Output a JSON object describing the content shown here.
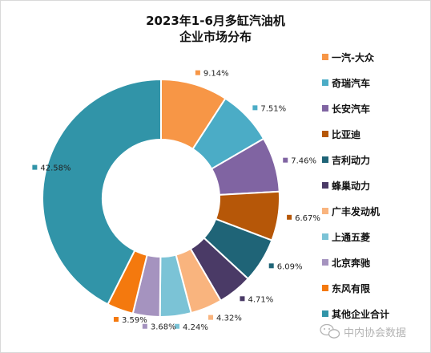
{
  "chart_data": {
    "type": "pie",
    "subtype": "donut",
    "title": [
      "2023年1-6月多缸汽油机",
      "企业市场分布"
    ],
    "legend_position": "right",
    "series": [
      {
        "name": "一汽-大众",
        "value": 9.14,
        "label": "9.14%",
        "color": "#F79646"
      },
      {
        "name": "奇瑞汽车",
        "value": 7.51,
        "label": "7.51%",
        "color": "#4BACC6"
      },
      {
        "name": "长安汽车",
        "value": 7.46,
        "label": "7.46%",
        "color": "#8064A2"
      },
      {
        "name": "比亚迪",
        "value": 6.67,
        "label": "6.67%",
        "color": "#B65708"
      },
      {
        "name": "吉利动力",
        "value": 6.09,
        "label": "6.09%",
        "color": "#1F6477"
      },
      {
        "name": "蜂巢动力",
        "value": 4.71,
        "label": "4.71%",
        "color": "#4A3A66"
      },
      {
        "name": "广丰发动机",
        "value": 4.32,
        "label": "4.32%",
        "color": "#F9B47E"
      },
      {
        "name": "上通五菱",
        "value": 4.24,
        "label": "4.24%",
        "color": "#7BC3D6"
      },
      {
        "name": "北京奔驰",
        "value": 3.68,
        "label": "3.68%",
        "color": "#A593BF"
      },
      {
        "name": "东风有限",
        "value": 3.59,
        "label": "3.59%",
        "color": "#F4790E"
      },
      {
        "name": "其他企业合计",
        "value": 42.58,
        "label": "42.58%",
        "color": "#3194A8"
      }
    ]
  },
  "watermark": {
    "text": "中内协会数据",
    "icon": "wechat-icon"
  }
}
